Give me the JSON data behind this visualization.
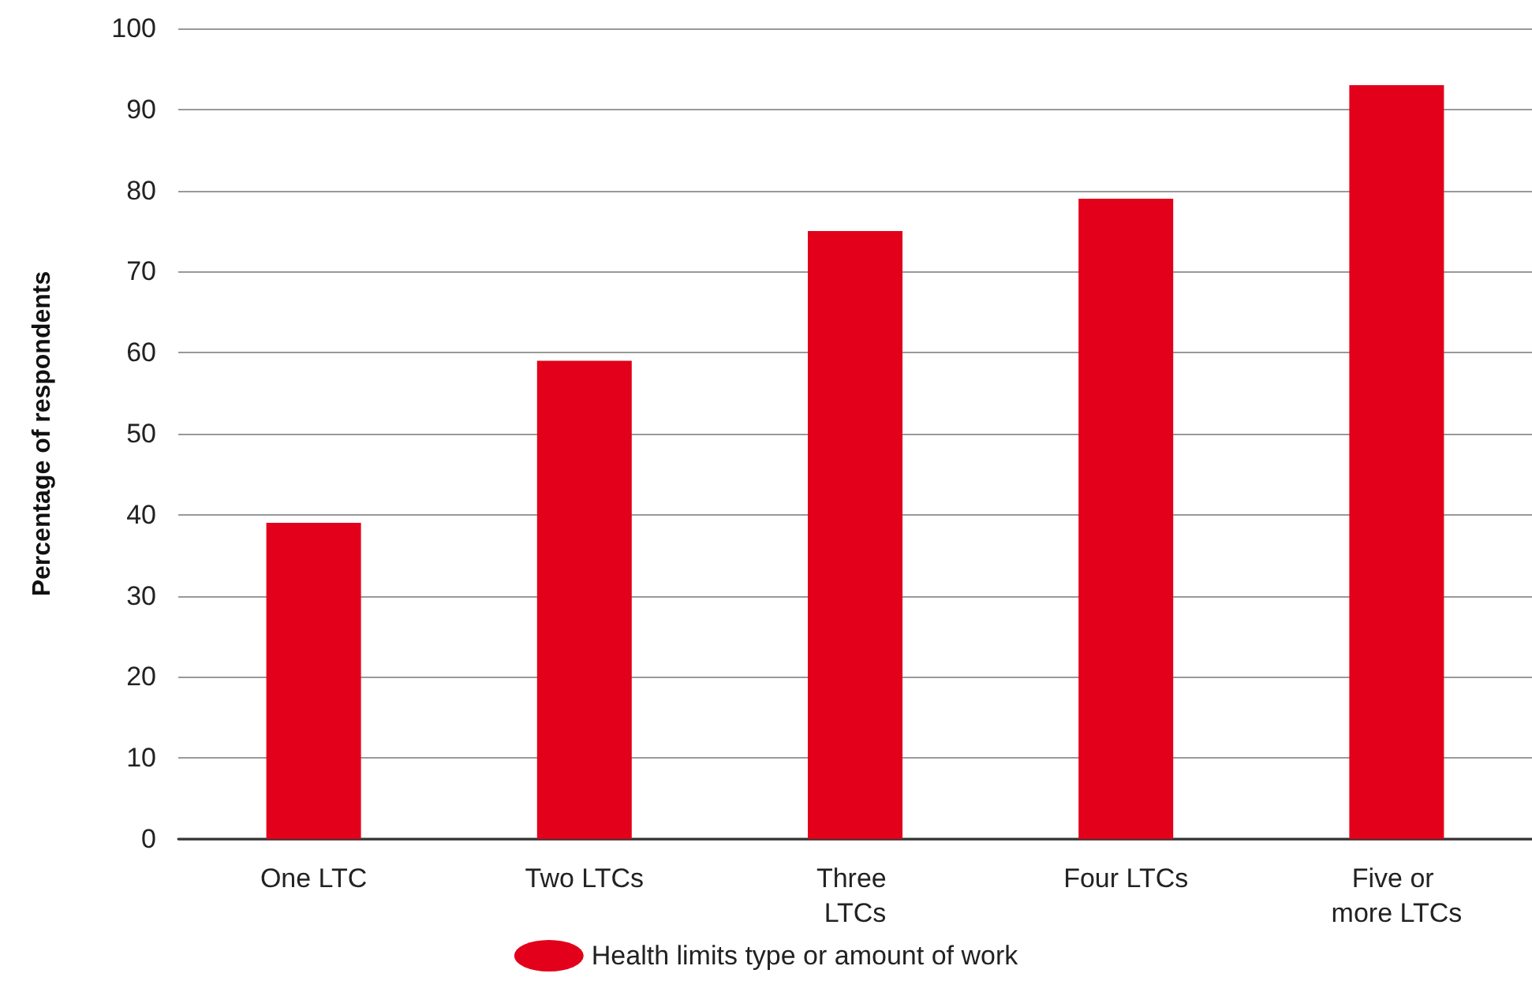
{
  "chart_data": {
    "type": "bar",
    "ylabel": "Percentage of respondents",
    "categories": [
      "One LTC",
      "Two LTCs",
      "Three LTCs",
      "Four LTCs",
      "Five or more LTCs"
    ],
    "series": [
      {
        "name": "Health limits type or amount of work",
        "color": "#e2001a",
        "values": [
          39,
          59,
          75,
          79,
          93
        ]
      }
    ],
    "ylim": [
      0,
      100
    ],
    "yticks": [
      0,
      10,
      20,
      30,
      40,
      50,
      60,
      70,
      80,
      90,
      100
    ],
    "grid": "y",
    "legend": "bottom"
  }
}
